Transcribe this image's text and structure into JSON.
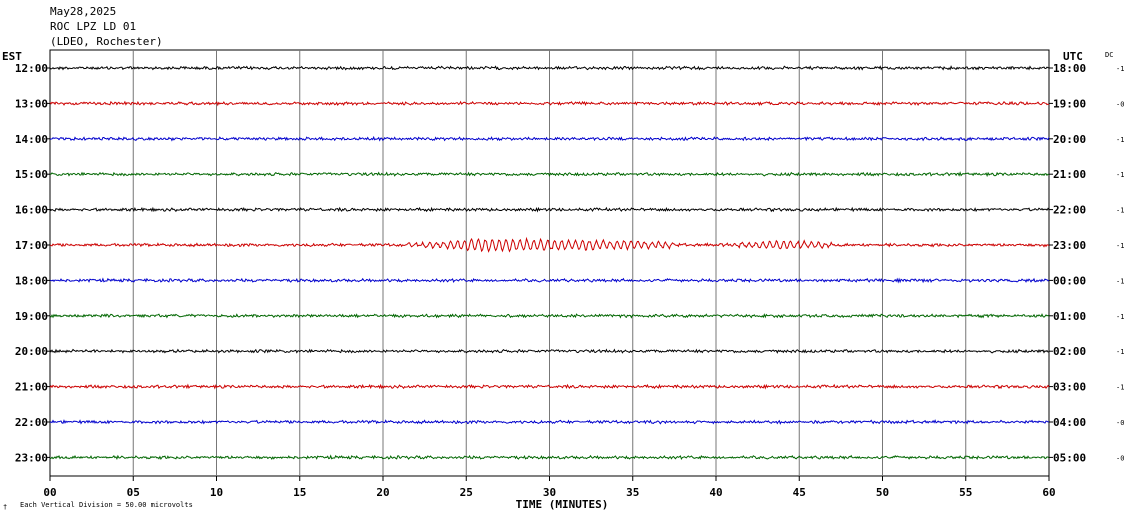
{
  "header": {
    "date": "May28,2025",
    "station": "ROC LPZ LD 01",
    "network": "(LDEO, Rochester)"
  },
  "chart_data": {
    "type": "line",
    "left_axis_label": "EST",
    "right_axis_label": "UTC",
    "dc_label": "DC",
    "xlabel": "TIME (MINUTES)",
    "xlim": [
      0,
      60
    ],
    "x_ticks": [
      "00",
      "05",
      "10",
      "15",
      "20",
      "25",
      "30",
      "35",
      "40",
      "45",
      "50",
      "55",
      "60"
    ],
    "grid": true,
    "footer_note": "Each Vertical Division = 50.00 microvolts",
    "footer_mark": "†",
    "colors": [
      "#000000",
      "#cc0000",
      "#0000cc",
      "#006600"
    ],
    "rows": [
      {
        "est": "12:00",
        "utc": "18:00",
        "dc": "-1",
        "color": "#000000"
      },
      {
        "est": "13:00",
        "utc": "19:00",
        "dc": "-0",
        "color": "#cc0000"
      },
      {
        "est": "14:00",
        "utc": "20:00",
        "dc": "-1",
        "color": "#0000cc"
      },
      {
        "est": "15:00",
        "utc": "21:00",
        "dc": "-1",
        "color": "#006600"
      },
      {
        "est": "16:00",
        "utc": "22:00",
        "dc": "-1",
        "color": "#000000"
      },
      {
        "est": "17:00",
        "utc": "23:00",
        "dc": "-1",
        "color": "#cc0000",
        "events": [
          {
            "start_min": 21.5,
            "end_min": 37.5,
            "peak_min": 26,
            "level": "strong"
          },
          {
            "start_min": 40,
            "end_min": 47,
            "level": "moderate"
          }
        ]
      },
      {
        "est": "18:00",
        "utc": "00:00",
        "dc": "-1",
        "color": "#0000cc"
      },
      {
        "est": "19:00",
        "utc": "01:00",
        "dc": "-1",
        "color": "#006600"
      },
      {
        "est": "20:00",
        "utc": "02:00",
        "dc": "-1",
        "color": "#000000"
      },
      {
        "est": "21:00",
        "utc": "03:00",
        "dc": "-1",
        "color": "#cc0000"
      },
      {
        "est": "22:00",
        "utc": "04:00",
        "dc": "-0",
        "color": "#0000cc"
      },
      {
        "est": "23:00",
        "utc": "05:00",
        "dc": "-0",
        "color": "#006600"
      }
    ]
  }
}
